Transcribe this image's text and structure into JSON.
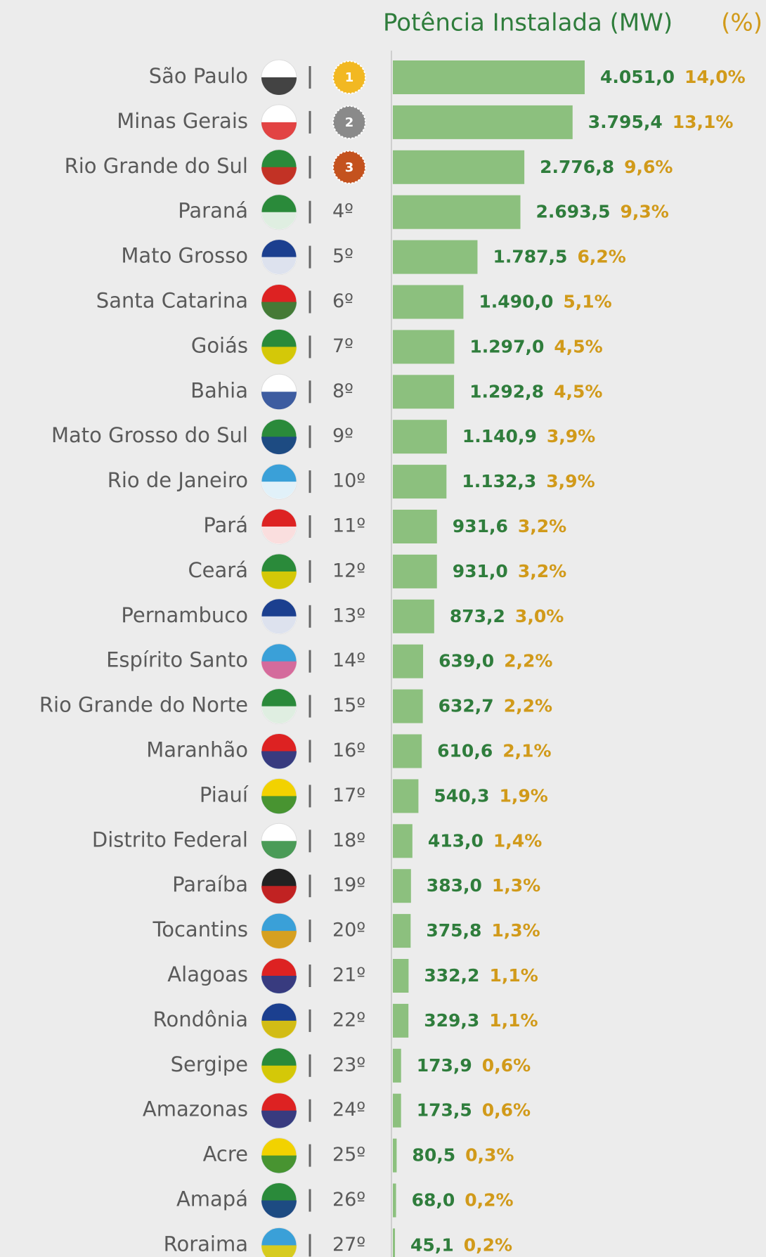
{
  "chart_data": {
    "type": "bar",
    "orientation": "horizontal",
    "categories": [
      "São Paulo",
      "Minas Gerais",
      "Rio Grande do Sul",
      "Paraná",
      "Mato Grosso",
      "Santa Catarina",
      "Goiás",
      "Bahia",
      "Mato Grosso do Sul",
      "Rio de Janeiro",
      "Pará",
      "Ceará",
      "Pernambuco",
      "Espírito Santo",
      "Rio Grande do Norte",
      "Maranhão",
      "Piauí",
      "Distrito Federal",
      "Paraíba",
      "Tocantins",
      "Alagoas",
      "Rondônia",
      "Sergipe",
      "Amazonas",
      "Acre",
      "Amapá",
      "Roraima"
    ],
    "ranks": [
      "1",
      "2",
      "3",
      "4º",
      "5º",
      "6º",
      "7º",
      "8º",
      "9º",
      "10º",
      "11º",
      "12º",
      "13º",
      "14º",
      "15º",
      "16º",
      "17º",
      "18º",
      "19º",
      "20º",
      "21º",
      "22º",
      "23º",
      "24º",
      "25º",
      "26º",
      "27º"
    ],
    "series": [
      {
        "name": "Potência Instalada (MW)",
        "color": "#8cc07e",
        "values": [
          4051.0,
          3795.4,
          2776.8,
          2693.5,
          1787.5,
          1490.0,
          1297.0,
          1292.8,
          1140.9,
          1132.3,
          931.6,
          931.0,
          873.2,
          639.0,
          632.7,
          610.6,
          540.3,
          413.0,
          383.0,
          375.8,
          332.2,
          329.3,
          173.9,
          173.5,
          80.5,
          68.0,
          45.1
        ],
        "value_labels": [
          "4.051,0",
          "3.795,4",
          "2.776,8",
          "2.693,5",
          "1.787,5",
          "1.490,0",
          "1.297,0",
          "1.292,8",
          "1.140,9",
          "1.132,3",
          "931,6",
          "931,0",
          "873,2",
          "639,0",
          "632,7",
          "610,6",
          "540,3",
          "413,0",
          "383,0",
          "375,8",
          "332,2",
          "329,3",
          "173,9",
          "173,5",
          "80,5",
          "68,0",
          "45,1"
        ]
      },
      {
        "name": "(%)",
        "color": "#d19a1a",
        "values": [
          14.0,
          13.1,
          9.6,
          9.3,
          6.2,
          5.1,
          4.5,
          4.5,
          3.9,
          3.9,
          3.2,
          3.2,
          3.0,
          2.2,
          2.2,
          2.1,
          1.9,
          1.4,
          1.3,
          1.3,
          1.1,
          1.1,
          0.6,
          0.6,
          0.3,
          0.2,
          0.2
        ],
        "value_labels": [
          "14,0%",
          "13,1%",
          "9,6%",
          "9,3%",
          "6,2%",
          "5,1%",
          "4,5%",
          "4,5%",
          "3,9%",
          "3,9%",
          "3,2%",
          "3,2%",
          "3,0%",
          "2,2%",
          "2,2%",
          "2,1%",
          "1,9%",
          "1,4%",
          "1,3%",
          "1,3%",
          "1,1%",
          "1,1%",
          "0,6%",
          "0,6%",
          "0,3%",
          "0,2%",
          "0,2%"
        ]
      }
    ]
  }
}
